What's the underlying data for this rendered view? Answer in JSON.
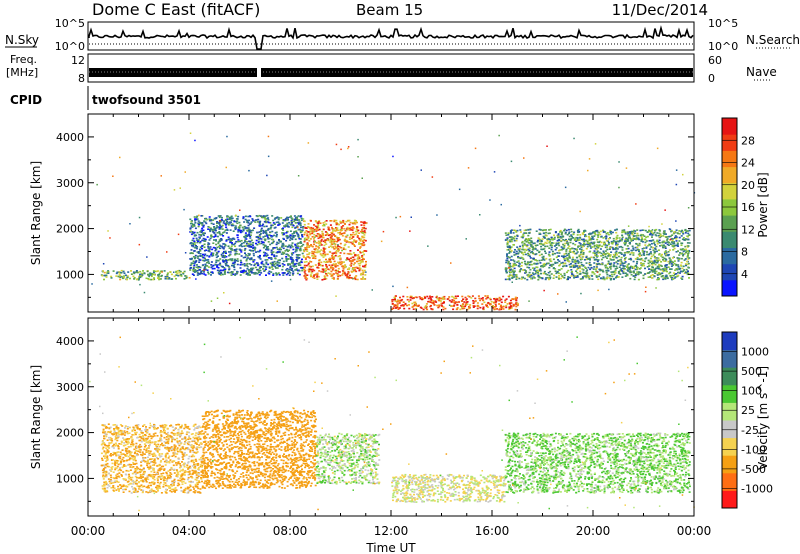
{
  "header": {
    "site": "Dome C East (fitACF)",
    "beam": "Beam 15",
    "date": "11/Dec/2014"
  },
  "nsky_panel": {
    "left_label": "N.Sky",
    "right_label": "N.Search",
    "left_ticks": [
      "10^5",
      "10^0"
    ],
    "right_ticks": [
      "10^5",
      "10^0"
    ]
  },
  "freq_panel": {
    "left_label_line1": "Freq.",
    "left_label_line2": "[MHz]",
    "left_ticks": [
      "12",
      "8"
    ],
    "right_label": "Nave",
    "right_ticks": [
      "60",
      "0"
    ]
  },
  "cpid": {
    "label": "CPID",
    "value": "twofsound 3501"
  },
  "x_axis": {
    "label": "Time UT",
    "ticks": [
      "00:00",
      "04:00",
      "08:00",
      "12:00",
      "16:00",
      "20:00",
      "00:00"
    ]
  },
  "colors": {
    "power_scale": [
      "#0a14ff",
      "#1e46b4",
      "#2a6aa0",
      "#3a8a70",
      "#5aa050",
      "#8cc83c",
      "#d2d23c",
      "#f0aa28",
      "#f57814",
      "#f03c14",
      "#e61414"
    ],
    "velocity_scale": [
      "#ff1a1a",
      "#ff6e14",
      "#f5a014",
      "#f5d250",
      "#c8c8c8",
      "#b4e678",
      "#4ac832",
      "#3c8c5a",
      "#3c6ca0",
      "#1e3cbe"
    ]
  },
  "chart_data": [
    {
      "type": "heatmap",
      "title": "Power",
      "ylabel": "Slant Range [km]",
      "xlabel": "",
      "ylim": [
        180,
        4500
      ],
      "y_ticks": [
        "1000",
        "2000",
        "3000",
        "4000"
      ],
      "colorbar": {
        "label": "Power [dB]",
        "range": [
          0,
          32
        ],
        "ticks": [
          "4",
          "8",
          "12",
          "16",
          "20",
          "24",
          "28"
        ]
      },
      "regions": [
        {
          "t": [
            0.5,
            4.0
          ],
          "r": [
            900,
            1100
          ],
          "value": 14
        },
        {
          "t": [
            4.0,
            8.5
          ],
          "r": [
            1000,
            2300
          ],
          "value": 8
        },
        {
          "t": [
            8.5,
            11.0
          ],
          "r": [
            900,
            2200
          ],
          "value": 24
        },
        {
          "t": [
            12.0,
            17.0
          ],
          "r": [
            250,
            550
          ],
          "value": 26
        },
        {
          "t": [
            16.5,
            23.8
          ],
          "r": [
            900,
            2000
          ],
          "value": 12
        }
      ]
    },
    {
      "type": "heatmap",
      "title": "Velocity",
      "ylabel": "Slant Range [km]",
      "xlabel": "Time UT",
      "ylim": [
        180,
        4500
      ],
      "y_ticks": [
        "1000",
        "2000",
        "3000",
        "4000"
      ],
      "colorbar": {
        "label": "Velocity [m s^-1]",
        "ticks": [
          "1000",
          "500",
          "100",
          "25",
          "-25",
          "-100",
          "-500",
          "-1000"
        ]
      },
      "regions": [
        {
          "t": [
            0.5,
            4.5
          ],
          "r": [
            700,
            2200
          ],
          "value": -100
        },
        {
          "t": [
            4.5,
            9.0
          ],
          "r": [
            800,
            2500
          ],
          "value": -300
        },
        {
          "t": [
            9.0,
            11.5
          ],
          "r": [
            900,
            2000
          ],
          "value": 50
        },
        {
          "t": [
            12.0,
            16.5
          ],
          "r": [
            500,
            1100
          ],
          "value": 0
        },
        {
          "t": [
            16.5,
            23.8
          ],
          "r": [
            700,
            2000
          ],
          "value": 100
        }
      ]
    }
  ]
}
